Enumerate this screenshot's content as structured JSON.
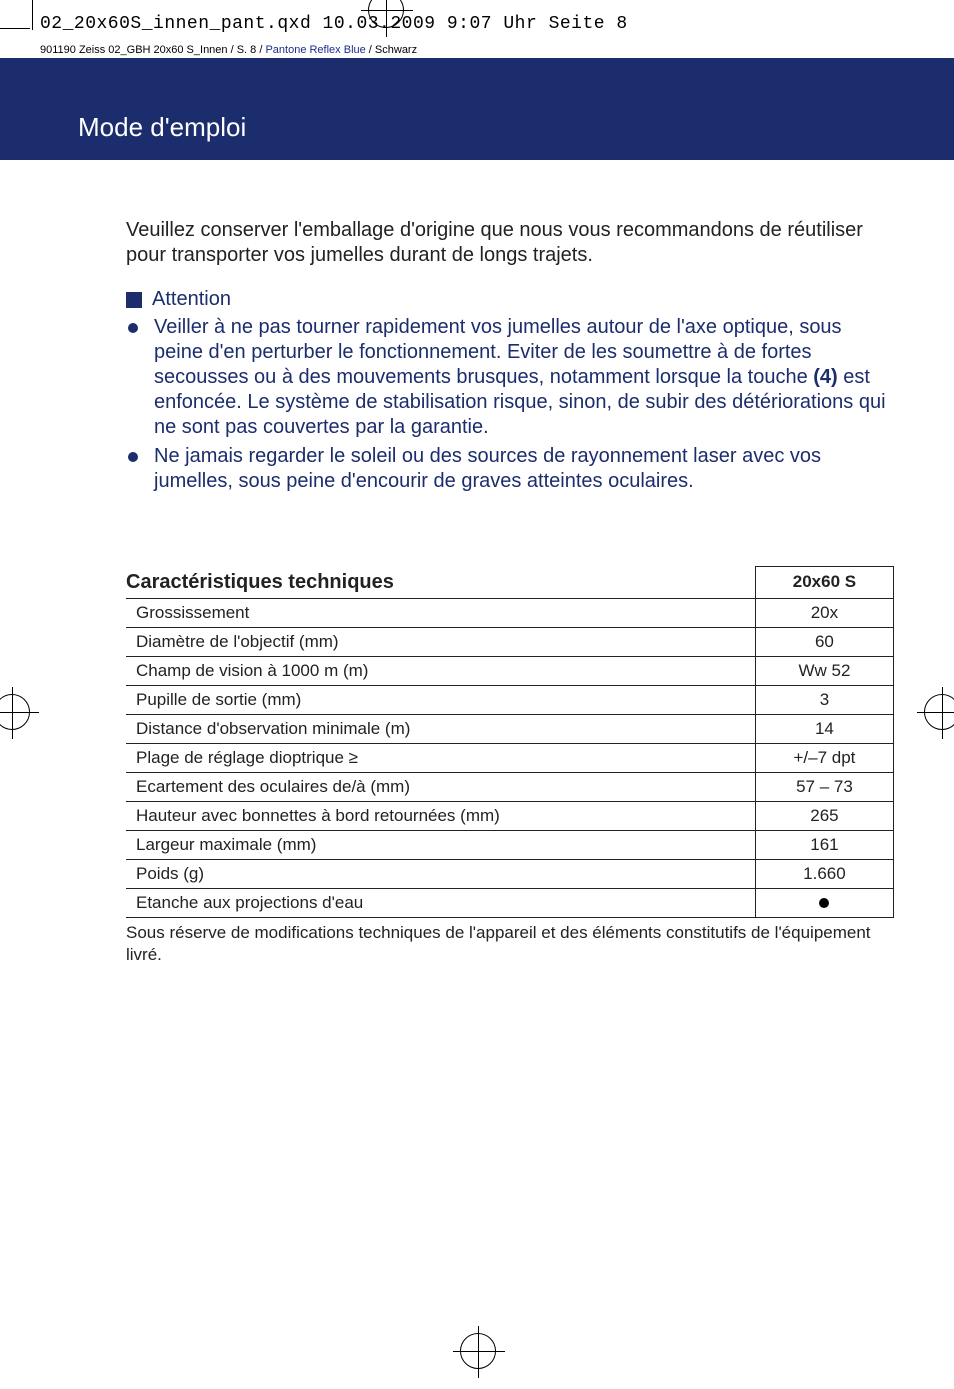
{
  "meta": {
    "file_line": "02_20x60S_innen_pant.qxd  10.03.2009  9:07 Uhr  Seite 8",
    "sub_line_black1": "901190 Zeiss 02_GBH 20x60 S_Innen / S. 8 / ",
    "sub_line_blue": "Pantone Reflex Blue",
    "sub_line_black2": " / Schwarz"
  },
  "title": "Mode d'emploi",
  "intro": "Veuillez conserver l'emballage d'origine que nous vous recommandons de réutiliser pour transporter vos jumelles durant de longs trajets.",
  "attention_label": "Attention",
  "bullets": {
    "b1_pre": "Veiller à ne pas tourner rapidement vos jumelles autour de l'axe optique, sous peine d'en perturber le fonctionnement. Eviter de les soumettre à de fortes secousses ou à des mouvements brusques, notamment lorsque la touche ",
    "b1_bold": "(4)",
    "b1_post": " est enfoncée. Le système de stabili­sation risque, sinon, de subir des détériorations qui ne sont pas cou­vertes par la garantie.",
    "b2": "Ne jamais regarder le soleil ou des sources de rayonnement laser avec vos jumelles, sous peine d'encourir de graves atteintes oculaires."
  },
  "spec_heading": "Caractéristiques techniques",
  "col2_header": "20x60 S",
  "rows": [
    {
      "label": "Grossissement",
      "value": "20x"
    },
    {
      "label": "Diamètre de l'objectif (mm)",
      "value": "60"
    },
    {
      "label": "Champ de vision à 1000 m (m)",
      "value": "Ww 52"
    },
    {
      "label": "Pupille de sortie (mm)",
      "value": "3"
    },
    {
      "label": "Distance d'observation minimale (m)",
      "value": "14"
    },
    {
      "label": "Plage de réglage dioptrique ≥",
      "value": "+/–7 dpt"
    },
    {
      "label": "Ecartement des oculaires de/à (mm)",
      "value": "57 – 73"
    },
    {
      "label": "Hauteur avec bonnettes à bord retournées (mm)",
      "value": "265"
    },
    {
      "label": "Largeur maximale (mm)",
      "value": "161"
    },
    {
      "label": "Poids (g)",
      "value": "1.660"
    }
  ],
  "splash_row_label": "Etanche aux projections d'eau",
  "footnote": "Sous réserve de modifications techniques de l'appareil et des éléments constitutifs de l'équipement livré."
}
